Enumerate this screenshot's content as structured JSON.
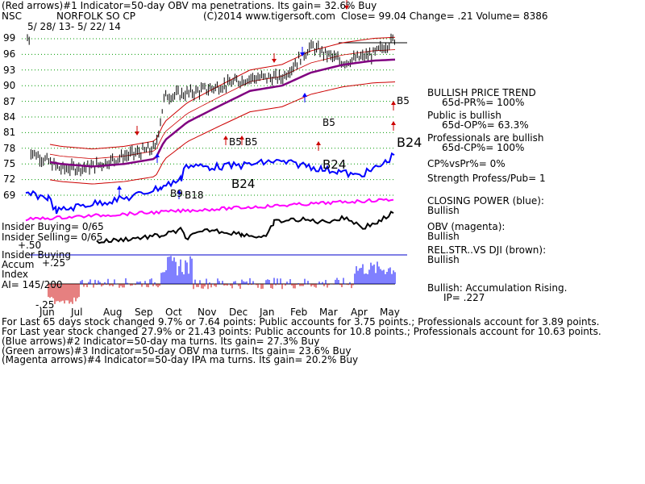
{
  "header": {
    "line1": "(Red arrows)#1 Indicator=50-day OBV ma penetrations. Its gain= 32.6% Buy",
    "ticker": "NSC",
    "company": "NORFOLK SO CP",
    "copyright": "(C)2014 www.tigersoft.com",
    "quote": "Close=  99.04  Change= .21 Volume= 8386",
    "date_range": "5/ 28/ 13-  5/ 22/ 14"
  },
  "chart_data": {
    "type": "line",
    "title": "NORFOLK SO CP",
    "price_axis": {
      "ticks": [
        "99",
        "96",
        "93",
        "90",
        "87",
        "84",
        "81",
        "78",
        "75",
        "72",
        "69"
      ],
      "ylim": [
        69,
        99
      ]
    },
    "months": [
      "Jun",
      "Jul",
      "Aug",
      "Sep",
      "Oct",
      "Nov",
      "Dec",
      "Jan",
      "Feb",
      "Mar",
      "Apr",
      "May"
    ],
    "price_series": {
      "dates": [
        "2013-06-01",
        "2013-07-01",
        "2013-08-01",
        "2013-09-01",
        "2013-10-01",
        "2013-10-10",
        "2013-11-01",
        "2013-12-01",
        "2014-01-01",
        "2014-02-01",
        "2014-03-01",
        "2014-04-01",
        "2014-05-01",
        "2014-05-22"
      ],
      "close": [
        77.5,
        74.0,
        74.5,
        76.5,
        78.0,
        88.0,
        88.5,
        89.8,
        91.5,
        91.5,
        97.5,
        94.5,
        96.0,
        99.04
      ]
    },
    "ma_50_day": [
      76.0,
      75.0,
      74.5,
      75.0,
      76.0,
      79.5,
      83.0,
      86.0,
      89.0,
      90.0,
      92.5,
      94.0,
      94.8,
      95.0
    ],
    "signals": [
      "B5 B5",
      "B5",
      "B5",
      "B24",
      "B24",
      "B24",
      "B9",
      "B18"
    ],
    "series": [
      {
        "name": "CLOSING POWER (blue)",
        "color": "#0000ff"
      },
      {
        "name": "OBV (magenta)",
        "color": "#ff00ff"
      },
      {
        "name": "REL.STR..VS DJI (brown)",
        "color": "#000000"
      }
    ],
    "accumulation_index": {
      "label": "Accum",
      "label2": "Index",
      "ai": "AI= 145/200",
      "ticks": [
        "+.50",
        "+.25",
        "-.25"
      ]
    }
  },
  "insider": {
    "buying_top": "Insider Buying= 0/65",
    "selling": "Insider Selling= 0/65",
    "buying_label": "Insider Buying"
  },
  "right_panel": {
    "trend_title": "BULLISH PRICE TREND",
    "pr": "65d-PR%= 100%",
    "public_title": "Public is bullish",
    "op": "65d-OP%= 63.3%",
    "pros_title": "Professionals are bullish",
    "cp": "65d-CP%= 100%",
    "cpvspr": "CP%vsPr%=  0%",
    "strength": "Strength Profess/Pub= 1",
    "closing_power_label": "CLOSING POWER (blue):",
    "closing_power_value": "Bullish",
    "obv_label": "OBV (magenta):",
    "obv_value": "Bullish",
    "relstr_label": "REL.STR..VS DJI (brown):",
    "relstr_value": "Bullish",
    "accum_label": "Bullish: Accumulation Rising.",
    "ip": "IP=  .227"
  },
  "footer": {
    "line1": "For Last 65 days stock changed  9.7% or  7.64 points:  Public accounts for  3.75 points.;  Professionals account for  3.89 points.",
    "line2": "For Last year stock changed  27.9% or  21.43 points:  Public accounts for  10.8 points.;  Professionals account for  10.63 points.",
    "line3": "(Blue arrows)#2 Indicator=50-day ma turns. Its gain= 27.3% Buy",
    "line4": "(Green arrows)#3 Indicator=50-day OBV ma turns. Its gain= 23.6% Buy",
    "line5": "(Magenta arrows)#4 Indicator=50-day IPA ma turns. Its gain= 20.2% Buy"
  },
  "colors": {
    "price": "#000000",
    "bands": "#cc0000",
    "ma": "#800080",
    "cp": "#0000ff",
    "obv": "#ff00ff",
    "accum_pos": "#0000ff",
    "accum_neg": "#cc0000",
    "grid": "#009900"
  }
}
